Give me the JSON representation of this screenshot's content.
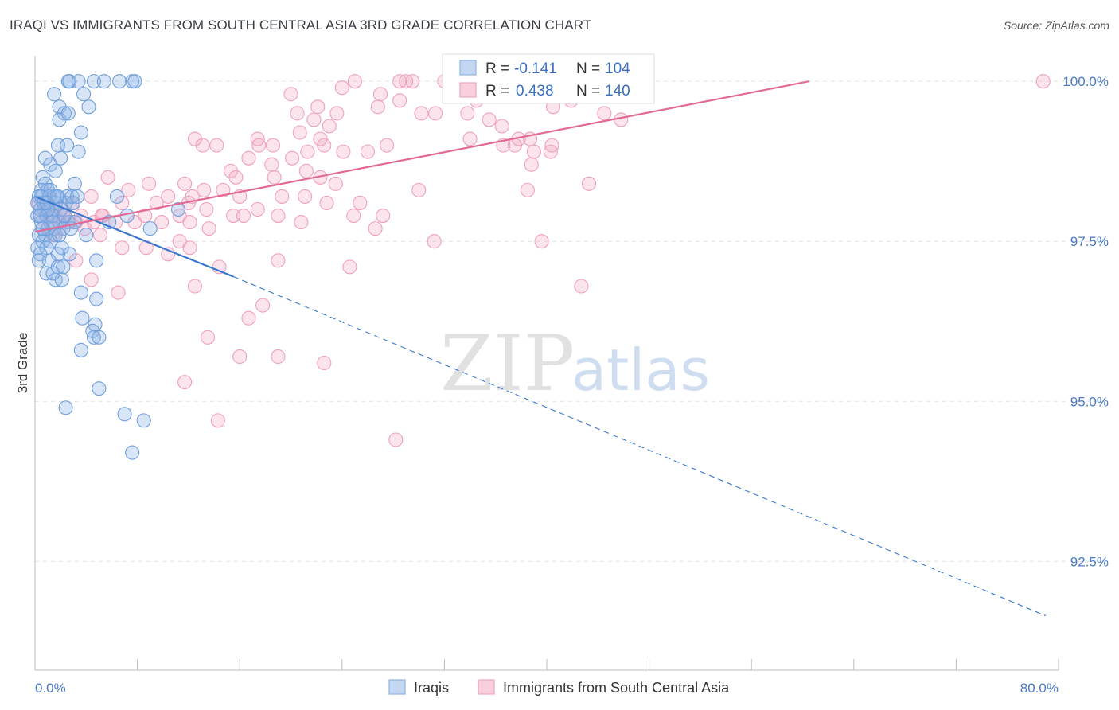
{
  "title": "IRAQI VS IMMIGRANTS FROM SOUTH CENTRAL ASIA 3RD GRADE CORRELATION CHART",
  "source": "Source: ZipAtlas.com",
  "watermark": {
    "zip": "ZIP",
    "atlas": "atlas"
  },
  "chart_data": {
    "type": "scatter",
    "xlabel": "",
    "ylabel": "3rd Grade",
    "xlim": [
      0,
      80
    ],
    "ylim": [
      90.8,
      100.4
    ],
    "x_tick_labels": [
      "0.0%",
      "80.0%"
    ],
    "y_ticks": [
      92.5,
      95.0,
      97.5,
      100.0
    ],
    "y_tick_labels": [
      "92.5%",
      "95.0%",
      "97.5%",
      "100.0%"
    ],
    "grid": "horizontal-dashed",
    "legend_top": [
      {
        "r_label": "R = ",
        "r_value": "-0.141",
        "n_label": "N = ",
        "n_value": "104",
        "color": "#8fb4e6"
      },
      {
        "r_label": "R = ",
        "r_value": "0.438",
        "n_label": "N = ",
        "n_value": "140",
        "color": "#f2a5bf"
      }
    ],
    "series": [
      {
        "name": "Iraqis",
        "color": "#6f9fdc",
        "line_color": "#3a78d0",
        "trend": {
          "x0": 0,
          "y0": 98.2,
          "x1": 15.5,
          "y1": 96.95,
          "dash_x1": 79,
          "dash_y1": 91.65
        },
        "points": [
          [
            2.6,
            100
          ],
          [
            2.7,
            100
          ],
          [
            3.4,
            100
          ],
          [
            4.6,
            100
          ],
          [
            5.4,
            100
          ],
          [
            6.6,
            100
          ],
          [
            7.6,
            100
          ],
          [
            7.8,
            100
          ],
          [
            1.5,
            99.8
          ],
          [
            3.8,
            99.8
          ],
          [
            1.9,
            99.6
          ],
          [
            4.2,
            99.6
          ],
          [
            2.3,
            99.5
          ],
          [
            1.9,
            99.4
          ],
          [
            2.6,
            99.5
          ],
          [
            3.6,
            99.2
          ],
          [
            1.8,
            99.0
          ],
          [
            2.5,
            99.0
          ],
          [
            3.4,
            98.9
          ],
          [
            2.0,
            98.8
          ],
          [
            0.8,
            98.8
          ],
          [
            1.2,
            98.7
          ],
          [
            1.6,
            98.6
          ],
          [
            0.6,
            98.5
          ],
          [
            0.8,
            98.4
          ],
          [
            3.1,
            98.4
          ],
          [
            0.5,
            98.3
          ],
          [
            1.0,
            98.3
          ],
          [
            1.8,
            98.2
          ],
          [
            2.4,
            98.1
          ],
          [
            6.4,
            98.2
          ],
          [
            0.3,
            98.2
          ],
          [
            1.1,
            98.2
          ],
          [
            1.6,
            98.1
          ],
          [
            2.5,
            98.2
          ],
          [
            3.0,
            98.1
          ],
          [
            0.4,
            98.0
          ],
          [
            0.7,
            98.0
          ],
          [
            1.3,
            98.0
          ],
          [
            2.0,
            98.0
          ],
          [
            0.2,
            97.9
          ],
          [
            0.9,
            97.9
          ],
          [
            1.4,
            97.9
          ],
          [
            1.9,
            97.8
          ],
          [
            2.6,
            97.8
          ],
          [
            3.1,
            97.8
          ],
          [
            0.5,
            97.8
          ],
          [
            1.0,
            97.7
          ],
          [
            1.5,
            97.7
          ],
          [
            2.2,
            97.7
          ],
          [
            0.3,
            97.6
          ],
          [
            0.8,
            97.6
          ],
          [
            1.6,
            97.6
          ],
          [
            4.0,
            97.6
          ],
          [
            5.8,
            97.8
          ],
          [
            0.6,
            97.5
          ],
          [
            1.2,
            97.5
          ],
          [
            2.1,
            97.4
          ],
          [
            0.2,
            97.4
          ],
          [
            0.9,
            97.4
          ],
          [
            2.7,
            97.3
          ],
          [
            1.8,
            97.3
          ],
          [
            0.4,
            97.3
          ],
          [
            1.1,
            97.2
          ],
          [
            1.8,
            97.1
          ],
          [
            4.8,
            97.2
          ],
          [
            0.9,
            97.0
          ],
          [
            1.6,
            96.9
          ],
          [
            3.6,
            96.7
          ],
          [
            4.8,
            96.6
          ],
          [
            2.1,
            96.9
          ],
          [
            3.7,
            96.3
          ],
          [
            4.7,
            96.2
          ],
          [
            4.5,
            96.1
          ],
          [
            4.6,
            96.0
          ],
          [
            5.0,
            96.0
          ],
          [
            3.6,
            95.8
          ],
          [
            5.0,
            95.2
          ],
          [
            2.4,
            94.9
          ],
          [
            7.0,
            94.8
          ],
          [
            8.5,
            94.7
          ],
          [
            7.6,
            94.2
          ],
          [
            1.0,
            98.0
          ],
          [
            1.5,
            98.2
          ],
          [
            1.2,
            98.3
          ],
          [
            0.7,
            98.1
          ],
          [
            2.9,
            98.2
          ],
          [
            1.4,
            97.8
          ],
          [
            0.6,
            97.7
          ],
          [
            2.3,
            97.9
          ],
          [
            0.2,
            98.1
          ],
          [
            2.8,
            97.7
          ],
          [
            1.7,
            98.2
          ],
          [
            0.5,
            98.2
          ],
          [
            3.3,
            98.2
          ],
          [
            0.4,
            97.9
          ],
          [
            1.9,
            97.6
          ],
          [
            0.9,
            98.1
          ],
          [
            7.2,
            97.9
          ],
          [
            11.2,
            98.0
          ],
          [
            9.0,
            97.7
          ],
          [
            0.3,
            97.2
          ],
          [
            1.4,
            97.0
          ],
          [
            2.2,
            97.1
          ]
        ]
      },
      {
        "name": "Immigrants from South Central Asia",
        "color": "#f0a0bc",
        "line_color": "#e26a96",
        "trend": {
          "x0": 0,
          "y0": 97.65,
          "x1": 60.5,
          "y1": 100.0
        },
        "points": [
          [
            25,
            100
          ],
          [
            29,
            100
          ],
          [
            28.5,
            100
          ],
          [
            29.5,
            100
          ],
          [
            32,
            100
          ],
          [
            33,
            100
          ],
          [
            32.6,
            100
          ],
          [
            33.5,
            100
          ],
          [
            36,
            100
          ],
          [
            43,
            100
          ],
          [
            47,
            100
          ],
          [
            78.8,
            100
          ],
          [
            24,
            99.9
          ],
          [
            20,
            99.8
          ],
          [
            27,
            99.8
          ],
          [
            28.5,
            99.7
          ],
          [
            34.5,
            99.7
          ],
          [
            30.2,
            99.5
          ],
          [
            22.1,
            99.6
          ],
          [
            26.8,
            99.6
          ],
          [
            20.5,
            99.5
          ],
          [
            21.8,
            99.4
          ],
          [
            23.6,
            99.5
          ],
          [
            31.3,
            99.5
          ],
          [
            33.8,
            99.5
          ],
          [
            35.5,
            99.4
          ],
          [
            40.5,
            99.6
          ],
          [
            41.9,
            99.7
          ],
          [
            44.5,
            99.5
          ],
          [
            45.8,
            99.4
          ],
          [
            23,
            99.3
          ],
          [
            20.7,
            99.2
          ],
          [
            34,
            99.1
          ],
          [
            22.3,
            99.1
          ],
          [
            17.4,
            99.1
          ],
          [
            12.5,
            99.1
          ],
          [
            14.2,
            99.0
          ],
          [
            17.5,
            99.0
          ],
          [
            18.6,
            99.0
          ],
          [
            21.3,
            98.9
          ],
          [
            22.6,
            99.0
          ],
          [
            27.5,
            99.0
          ],
          [
            26,
            98.9
          ],
          [
            24.1,
            98.9
          ],
          [
            36.6,
            99.0
          ],
          [
            37.8,
            99.1
          ],
          [
            39.0,
            98.9
          ],
          [
            13.1,
            99.0
          ],
          [
            38.7,
            99.1
          ],
          [
            20.1,
            98.8
          ],
          [
            16.7,
            98.8
          ],
          [
            18.5,
            98.7
          ],
          [
            15.3,
            98.6
          ],
          [
            21.2,
            98.6
          ],
          [
            22.3,
            98.5
          ],
          [
            23.5,
            98.4
          ],
          [
            18.7,
            98.5
          ],
          [
            15.7,
            98.5
          ],
          [
            11.7,
            98.4
          ],
          [
            8.9,
            98.4
          ],
          [
            7.3,
            98.3
          ],
          [
            5.7,
            98.5
          ],
          [
            13.2,
            98.3
          ],
          [
            12.3,
            98.2
          ],
          [
            10.4,
            98.2
          ],
          [
            14.7,
            98.3
          ],
          [
            16.0,
            98.2
          ],
          [
            19.3,
            98.2
          ],
          [
            21.1,
            98.2
          ],
          [
            22.8,
            98.1
          ],
          [
            25.4,
            98.1
          ],
          [
            30.0,
            98.3
          ],
          [
            38.5,
            98.3
          ],
          [
            4.4,
            98.2
          ],
          [
            6.8,
            98.1
          ],
          [
            9.5,
            98.1
          ],
          [
            12.0,
            98.1
          ],
          [
            13.4,
            98.0
          ],
          [
            16.3,
            97.9
          ],
          [
            17.4,
            98.0
          ],
          [
            19.0,
            97.9
          ],
          [
            20.8,
            97.8
          ],
          [
            24.9,
            97.9
          ],
          [
            26.6,
            97.7
          ],
          [
            27.2,
            97.9
          ],
          [
            31.2,
            97.5
          ],
          [
            4.6,
            97.8
          ],
          [
            5.2,
            97.9
          ],
          [
            6.3,
            97.8
          ],
          [
            7.8,
            97.8
          ],
          [
            8.6,
            97.9
          ],
          [
            9.9,
            97.8
          ],
          [
            11.3,
            97.9
          ],
          [
            12.1,
            97.8
          ],
          [
            13.6,
            97.7
          ],
          [
            1.2,
            97.8
          ],
          [
            2.2,
            97.9
          ],
          [
            3.2,
            97.8
          ],
          [
            3.9,
            97.7
          ],
          [
            0.4,
            97.9
          ],
          [
            0.9,
            98.0
          ],
          [
            1.6,
            97.9
          ],
          [
            2.7,
            97.8
          ],
          [
            0.6,
            97.7
          ],
          [
            1.4,
            97.6
          ],
          [
            5.1,
            97.6
          ],
          [
            6.8,
            97.4
          ],
          [
            8.7,
            97.4
          ],
          [
            10.4,
            97.3
          ],
          [
            11.3,
            97.5
          ],
          [
            12.1,
            97.4
          ],
          [
            14.4,
            97.1
          ],
          [
            19.0,
            97.2
          ],
          [
            24.6,
            97.1
          ],
          [
            3.2,
            97.2
          ],
          [
            4.4,
            96.9
          ],
          [
            6.5,
            96.7
          ],
          [
            12.5,
            96.8
          ],
          [
            16.7,
            96.3
          ],
          [
            17.8,
            96.5
          ],
          [
            13.5,
            96.0
          ],
          [
            16.0,
            95.7
          ],
          [
            19.0,
            95.7
          ],
          [
            22.6,
            95.6
          ],
          [
            11.7,
            95.3
          ],
          [
            14.3,
            94.7
          ],
          [
            28.2,
            94.4
          ],
          [
            37.5,
            99.0
          ],
          [
            38.8,
            98.7
          ],
          [
            36.5,
            99.3
          ],
          [
            40.3,
            98.9
          ],
          [
            43.3,
            98.4
          ],
          [
            39.6,
            97.5
          ],
          [
            42.7,
            96.8
          ],
          [
            40.4,
            99.0
          ],
          [
            2.1,
            98.0
          ],
          [
            3.6,
            97.9
          ],
          [
            0.3,
            98.1
          ],
          [
            1.9,
            97.7
          ],
          [
            2.9,
            98.1
          ],
          [
            5.3,
            97.9
          ],
          [
            15.5,
            97.9
          ]
        ]
      }
    ]
  }
}
